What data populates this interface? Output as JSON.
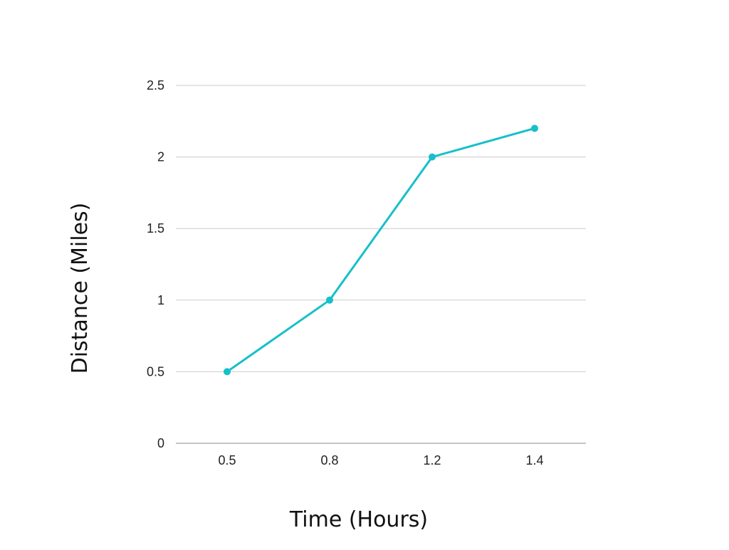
{
  "chart_data": {
    "type": "line",
    "categories": [
      "0.5",
      "0.8",
      "1.2",
      "1.4"
    ],
    "series": [
      {
        "values": [
          0.5,
          1,
          2,
          2.2
        ],
        "color": "#17BFC9"
      }
    ],
    "ylim": [
      0,
      2.5
    ],
    "y_ticks": [
      "0",
      "0.5",
      "1",
      "1.5",
      "2",
      "2.5"
    ],
    "xlabel": "Time (Hours)",
    "ylabel": "Distance (Miles)",
    "grid": true,
    "colors": {
      "line": "#17BFC9",
      "grid": "#CCCCCC",
      "baseline": "#888888"
    }
  }
}
